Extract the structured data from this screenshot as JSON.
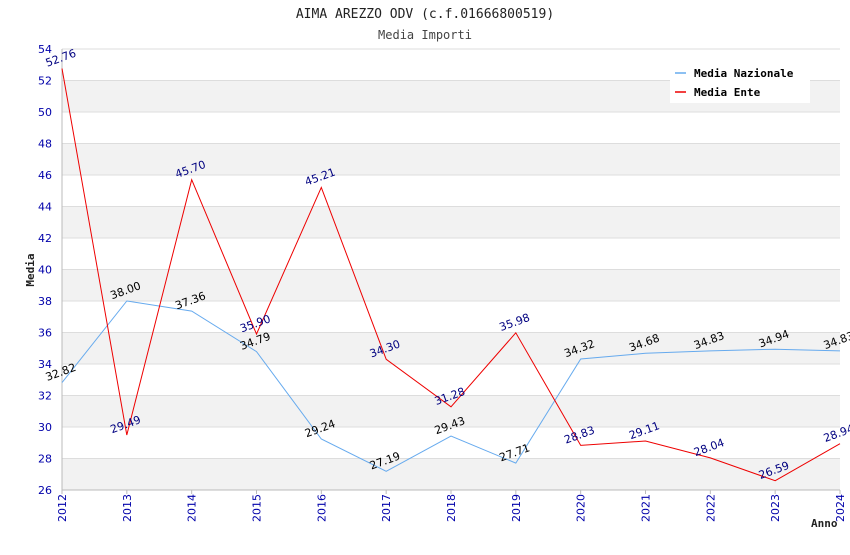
{
  "header": {
    "title": "AIMA AREZZO ODV (c.f.01666800519)",
    "subtitle": "Media Importi"
  },
  "chart_data": {
    "type": "line",
    "title": "AIMA AREZZO ODV (c.f.01666800519)",
    "subtitle": "Media Importi",
    "xlabel": "Anno",
    "ylabel": "Media",
    "ylim": [
      26,
      54
    ],
    "yticks": [
      "26",
      "28",
      "30",
      "32",
      "34",
      "36",
      "38",
      "40",
      "42",
      "44",
      "46",
      "48",
      "50",
      "52",
      "54"
    ],
    "categories": [
      "2012",
      "2013",
      "2014",
      "2015",
      "2016",
      "2017",
      "2018",
      "2019",
      "2020",
      "2021",
      "2022",
      "2023",
      "2024"
    ],
    "grid": "horizontal, alternating bands",
    "legend_position": "top-right",
    "series": [
      {
        "name": "Media Nazionale",
        "color": "#66aaee",
        "label_color": "#000000",
        "values": [
          32.82,
          38.0,
          37.36,
          34.79,
          29.24,
          27.19,
          29.43,
          27.71,
          34.32,
          34.68,
          34.83,
          34.94,
          34.83
        ],
        "labels": [
          "32.82",
          "38.00",
          "37.36",
          "34.79",
          "29.24",
          "27.19",
          "29.43",
          "27.71",
          "34.32",
          "34.68",
          "34.83",
          "34.94",
          "34.83"
        ]
      },
      {
        "name": "Media Ente",
        "color": "#ee0000",
        "label_color": "#000080",
        "values": [
          52.76,
          29.49,
          45.7,
          35.9,
          45.21,
          34.3,
          31.28,
          35.98,
          28.83,
          29.11,
          28.04,
          26.59,
          28.94
        ],
        "labels": [
          "52.76",
          "29.49",
          "45.70",
          "35.90",
          "45.21",
          "34.30",
          "31.28",
          "35.98",
          "28.83",
          "29.11",
          "28.04",
          "26.59",
          "28.94"
        ]
      }
    ]
  }
}
